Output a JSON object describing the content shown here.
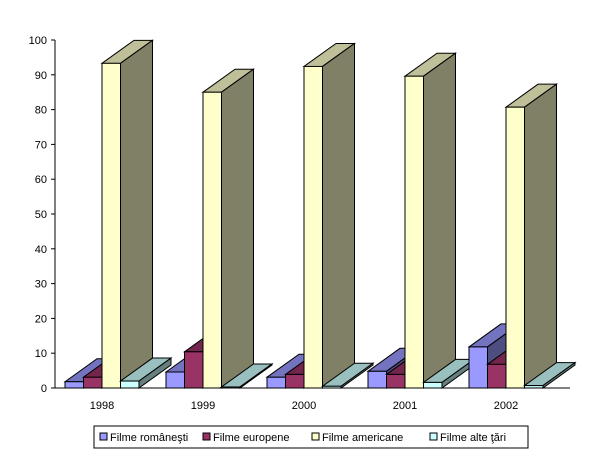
{
  "chart_data": {
    "type": "bar",
    "title": "",
    "xlabel": "",
    "ylabel": "",
    "ylim": [
      0,
      100
    ],
    "yticks": [
      0,
      10,
      20,
      30,
      40,
      50,
      60,
      70,
      80,
      90,
      100
    ],
    "categories": [
      "1998",
      "1999",
      "2000",
      "2001",
      "2002"
    ],
    "series": [
      {
        "name": "Filme româneşti",
        "color": "#9999ff",
        "values": [
          1.8,
          4.6,
          3.1,
          4.8,
          11.8
        ]
      },
      {
        "name": "Filme europene",
        "color": "#993366",
        "values": [
          3.1,
          10.4,
          3.9,
          3.9,
          6.8
        ]
      },
      {
        "name": "Filme americane",
        "color": "#ffffcc",
        "values": [
          93.3,
          85.0,
          92.4,
          89.6,
          80.7
        ]
      },
      {
        "name": "Filme alte ţări",
        "color": "#ccffff",
        "values": [
          2.0,
          0.3,
          0.5,
          1.6,
          0.7
        ]
      }
    ],
    "legend": "bottom"
  }
}
